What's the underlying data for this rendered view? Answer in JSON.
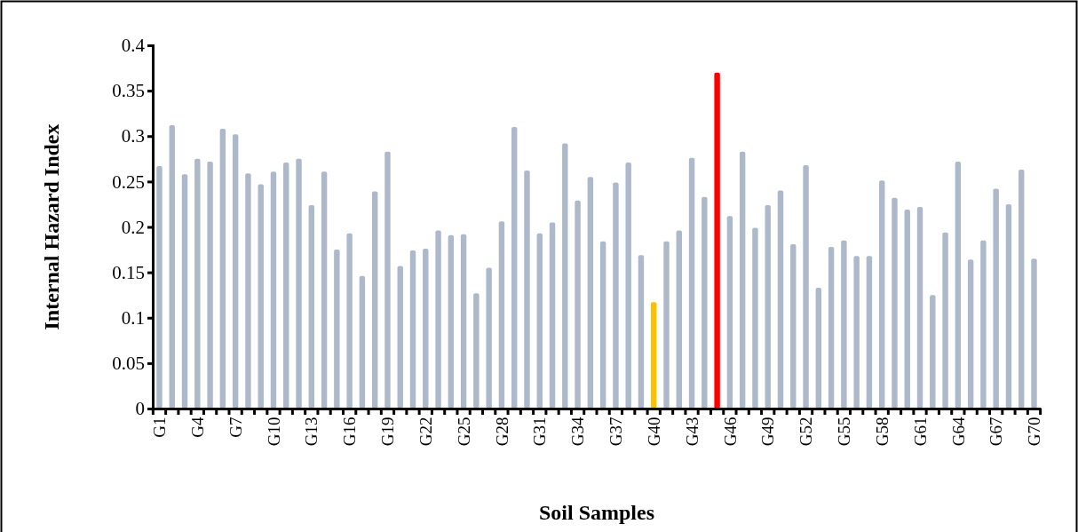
{
  "chart_data": {
    "type": "bar",
    "xlabel": "Soil Samples",
    "ylabel": "Internal Hazard Index",
    "categories": [
      "G1",
      null,
      null,
      "G4",
      null,
      null,
      "G7",
      null,
      null,
      "G10",
      null,
      null,
      "G13",
      null,
      null,
      "G16",
      null,
      null,
      "G19",
      null,
      null,
      "G22",
      null,
      null,
      "G25",
      null,
      null,
      "G28",
      null,
      null,
      "G31",
      null,
      null,
      "G34",
      null,
      null,
      "G37",
      null,
      null,
      "G40",
      null,
      null,
      "G43",
      null,
      null,
      "G46",
      null,
      null,
      "G49",
      null,
      null,
      "G52",
      null,
      null,
      "G55",
      null,
      null,
      "G58",
      null,
      null,
      "G61",
      null,
      null,
      "G64",
      null,
      null,
      "G67",
      null,
      null,
      "G70"
    ],
    "values": [
      0.267,
      0.312,
      0.258,
      0.275,
      0.272,
      0.308,
      0.302,
      0.259,
      0.247,
      0.261,
      0.271,
      0.275,
      0.224,
      0.261,
      0.175,
      0.193,
      0.146,
      0.239,
      0.283,
      0.157,
      0.174,
      0.176,
      0.196,
      0.191,
      0.192,
      0.127,
      0.155,
      0.206,
      0.31,
      0.262,
      0.193,
      0.205,
      0.292,
      0.229,
      0.255,
      0.184,
      0.249,
      0.271,
      0.169,
      0.117,
      0.184,
      0.196,
      0.276,
      0.233,
      0.37,
      0.212,
      0.283,
      0.199,
      0.224,
      0.24,
      0.181,
      0.268,
      0.133,
      0.178,
      0.185,
      0.168,
      0.168,
      0.251,
      0.232,
      0.219,
      0.222,
      0.125,
      0.194,
      0.272,
      0.164,
      0.185,
      0.242,
      0.225,
      0.263,
      0.165
    ],
    "colors": [
      "#adb9ca",
      "#adb9ca",
      "#adb9ca",
      "#adb9ca",
      "#adb9ca",
      "#adb9ca",
      "#adb9ca",
      "#adb9ca",
      "#adb9ca",
      "#adb9ca",
      "#adb9ca",
      "#adb9ca",
      "#adb9ca",
      "#adb9ca",
      "#adb9ca",
      "#adb9ca",
      "#adb9ca",
      "#adb9ca",
      "#adb9ca",
      "#adb9ca",
      "#adb9ca",
      "#adb9ca",
      "#adb9ca",
      "#adb9ca",
      "#adb9ca",
      "#adb9ca",
      "#adb9ca",
      "#adb9ca",
      "#adb9ca",
      "#adb9ca",
      "#adb9ca",
      "#adb9ca",
      "#adb9ca",
      "#adb9ca",
      "#adb9ca",
      "#adb9ca",
      "#adb9ca",
      "#adb9ca",
      "#adb9ca",
      "#ffc000",
      "#adb9ca",
      "#adb9ca",
      "#adb9ca",
      "#adb9ca",
      "#ff0000",
      "#adb9ca",
      "#adb9ca",
      "#adb9ca",
      "#adb9ca",
      "#adb9ca",
      "#adb9ca",
      "#adb9ca",
      "#adb9ca",
      "#adb9ca",
      "#adb9ca",
      "#adb9ca",
      "#adb9ca",
      "#adb9ca",
      "#adb9ca",
      "#adb9ca",
      "#adb9ca",
      "#adb9ca",
      "#adb9ca",
      "#adb9ca",
      "#adb9ca",
      "#adb9ca",
      "#adb9ca",
      "#adb9ca",
      "#adb9ca",
      "#adb9ca"
    ],
    "ylim": [
      0,
      0.4
    ],
    "yticks": [
      0,
      0.05,
      0.1,
      0.15,
      0.2,
      0.25,
      0.3,
      0.35,
      0.4
    ],
    "grid": false
  }
}
